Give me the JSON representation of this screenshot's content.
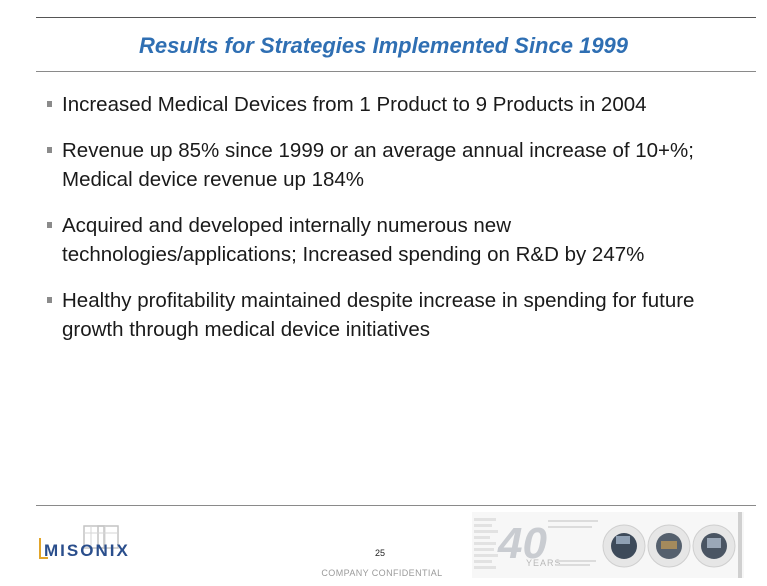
{
  "slide": {
    "title": "Results for Strategies Implemented Since 1999",
    "bullets": [
      {
        "text": "Increased Medical Devices from 1 Product to 9 Products in 2004"
      },
      {
        "text": "Revenue up 85% since 1999 or an average annual increase of 10+%; Medical device revenue up 184%"
      },
      {
        "text": "Acquired and developed internally numerous new technologies/applications; Increased spending on R&D by 247%"
      },
      {
        "text": "Healthy profitability maintained despite increase in spending for future growth through medical device initiatives"
      }
    ]
  },
  "footer": {
    "logo_text": "MISONIX",
    "page_number": "25",
    "confidential": "COMPANY CONFIDENTIAL",
    "anniversary_number": "40",
    "anniversary_word": "YEARS"
  },
  "colors": {
    "title": "#2f6fb3",
    "bullet_marker": "#8b8b8b",
    "rule": "#7d7d7d",
    "logo_text": "#2a4e8c",
    "logo_accent": "#e2a52a"
  }
}
